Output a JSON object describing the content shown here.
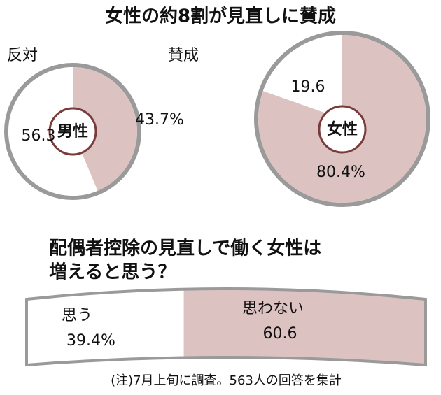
{
  "title": "女性の約8割が見直しに賛成",
  "note": "(注)7月上旬に調査。563人の回答を集計",
  "chart_data": [
    {
      "type": "pie",
      "center_label": "男性",
      "categories": [
        "賛成",
        "反対"
      ],
      "values": [
        43.7,
        56.3
      ],
      "value_labels": [
        "43.7%",
        "56.3"
      ],
      "colors": [
        "#dcc3c2",
        "#ffffff"
      ]
    },
    {
      "type": "pie",
      "center_label": "女性",
      "values": [
        80.4,
        19.6
      ],
      "value_labels": [
        "80.4%",
        "19.6"
      ],
      "colors": [
        "#dcc3c2",
        "#ffffff"
      ]
    },
    {
      "type": "bar",
      "title": [
        "配偶者控除の見直しで働く女性は",
        "増えると思う？"
      ],
      "categories": [
        "思う",
        "思わない"
      ],
      "values": [
        39.4,
        60.6
      ],
      "value_labels": [
        "39.4%",
        "60.6"
      ],
      "colors": [
        "#ffffff",
        "#dcc3c2"
      ]
    }
  ]
}
